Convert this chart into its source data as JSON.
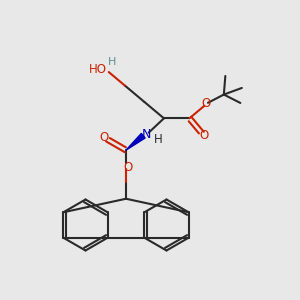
{
  "bg_color": "#e8e8e8",
  "line_color": "#2a2a2a",
  "red_color": "#cc2200",
  "blue_color": "#0000bb",
  "teal_color": "#5f9090",
  "line_width": 1.5,
  "font_size": 8.5,
  "fig_width": 3.0,
  "fig_height": 3.0,
  "dpi": 100,
  "xlim": [
    0,
    10
  ],
  "ylim": [
    0,
    10
  ]
}
